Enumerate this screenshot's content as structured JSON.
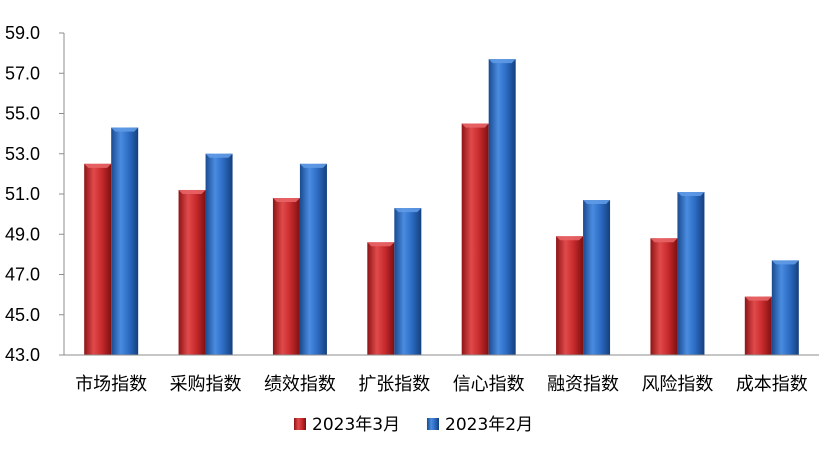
{
  "chart_data": {
    "type": "bar",
    "categories": [
      "市场指数",
      "采购指数",
      "绩效指数",
      "扩张指数",
      "信心指数",
      "融资指数",
      "风险指数",
      "成本指数"
    ],
    "series": [
      {
        "name": "2023年3月",
        "color": "#c0292b",
        "values": [
          52.5,
          51.2,
          50.8,
          48.6,
          54.5,
          48.9,
          48.8,
          45.9
        ]
      },
      {
        "name": "2023年2月",
        "color": "#2a6bc2",
        "values": [
          54.3,
          53.0,
          52.5,
          50.3,
          57.7,
          50.7,
          51.1,
          47.7
        ]
      }
    ],
    "ylim": [
      43.0,
      59.0
    ],
    "yticks": [
      "43.0",
      "45.0",
      "47.0",
      "49.0",
      "51.0",
      "53.0",
      "55.0",
      "57.0",
      "59.0"
    ],
    "grid": false,
    "legend_position": "bottom"
  }
}
